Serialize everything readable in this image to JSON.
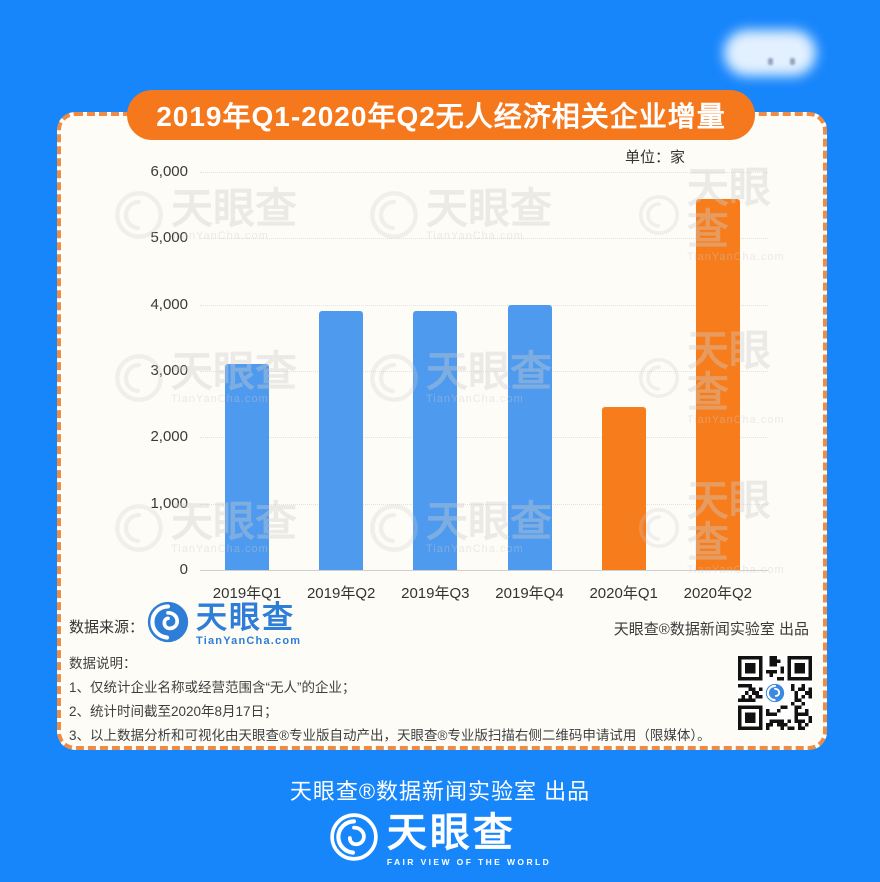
{
  "title": "2019年Q1-2020年Q2无人经济相关企业增量",
  "chart_data": {
    "type": "bar",
    "title": "2019年Q1-2020年Q2无人经济相关企业增量",
    "unit_label": "单位：家",
    "categories": [
      "2019年Q1",
      "2019年Q2",
      "2019年Q3",
      "2019年Q4",
      "2020年Q1",
      "2020年Q2"
    ],
    "values": [
      3100,
      3900,
      3900,
      4000,
      2450,
      5600
    ],
    "bar_colors": [
      "#4E9AEF",
      "#4E9AEF",
      "#4E9AEF",
      "#4E9AEF",
      "#F77C1C",
      "#F77C1C"
    ],
    "ylim": [
      0,
      6000
    ],
    "ytick_values": [
      0,
      1000,
      2000,
      3000,
      4000,
      5000,
      6000
    ],
    "ytick_labels": [
      "0",
      "1,000",
      "2,000",
      "3,000",
      "4,000",
      "5,000",
      "6,000"
    ],
    "grid": true,
    "legend": false,
    "xlabel": "",
    "ylabel": ""
  },
  "source_row": {
    "label": "数据来源：",
    "logo_text": "天眼查",
    "logo_sub": "TianYanCha.com",
    "credit": "天眼查®数据新闻实验室 出品"
  },
  "notes": {
    "heading": "数据说明：",
    "items": [
      "1、仅统计企业名称或经营范围含“无人”的企业；",
      "2、统计时间截至2020年8月17日；",
      "3、以上数据分析和可视化由天眼查®专业版自动产出，天眼查®专业版扫描右侧二维码申请试用（限媒体）。"
    ]
  },
  "footer": {
    "credit": "天眼查®数据新闻实验室 出品",
    "logo_text": "天眼查",
    "logo_tagline": "FAIR VIEW OF THE WORLD"
  },
  "watermark": {
    "text": "天眼查",
    "sub": "TianYanCha.com"
  },
  "colors": {
    "background": "#1886FB",
    "card": "#FDFCF7",
    "pill_orange": "#F5781C",
    "dash_border": "#EE8C45",
    "bar_blue": "#4E9AEF",
    "bar_orange": "#F77C1C",
    "logo_blue": "#2E7DD6"
  }
}
